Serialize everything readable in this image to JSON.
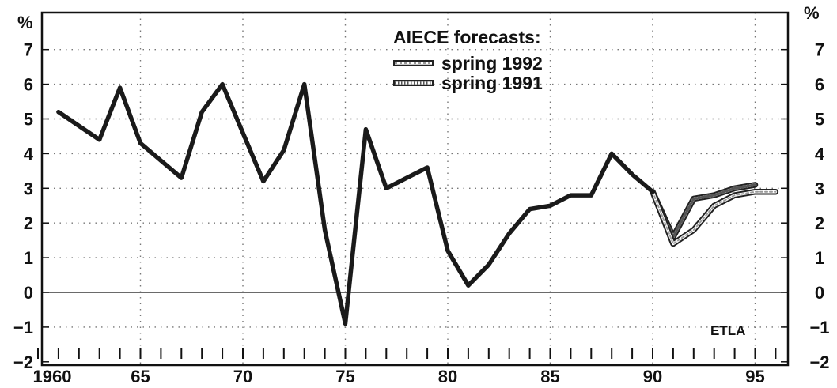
{
  "chart_data": {
    "type": "line",
    "title": "",
    "xlabel": "",
    "ylabel": "%",
    "ylabel_right": "%",
    "xlim": [
      1960,
      1997
    ],
    "ylim": [
      -2,
      8
    ],
    "grid": true,
    "x_ticks": [
      {
        "value": 1960,
        "label": "1960"
      },
      {
        "value": 1965,
        "label": "65"
      },
      {
        "value": 1970,
        "label": "70"
      },
      {
        "value": 1975,
        "label": "75"
      },
      {
        "value": 1980,
        "label": "80"
      },
      {
        "value": 1985,
        "label": "85"
      },
      {
        "value": 1990,
        "label": "90"
      },
      {
        "value": 1995,
        "label": "95"
      }
    ],
    "y_ticks": [
      {
        "value": -2,
        "label": "−2"
      },
      {
        "value": -1,
        "label": "−1"
      },
      {
        "value": 0,
        "label": "0"
      },
      {
        "value": 1,
        "label": "1"
      },
      {
        "value": 2,
        "label": "2"
      },
      {
        "value": 3,
        "label": "3"
      },
      {
        "value": 4,
        "label": "4"
      },
      {
        "value": 5,
        "label": "5"
      },
      {
        "value": 6,
        "label": "6"
      },
      {
        "value": 7,
        "label": "7"
      }
    ],
    "legend": {
      "title": "AIECE forecasts:",
      "position": "top-center"
    },
    "series": [
      {
        "kind": "actual",
        "color": "#222222",
        "x": [
          1961,
          1962,
          1963,
          1964,
          1965,
          1966,
          1967,
          1968,
          1969,
          1970,
          1971,
          1972,
          1973,
          1974,
          1975,
          1976,
          1977,
          1978,
          1979,
          1980,
          1981,
          1982,
          1983,
          1984,
          1985,
          1986,
          1987,
          1988,
          1989,
          1990
        ],
        "y": [
          5.2,
          4.8,
          4.4,
          5.9,
          4.3,
          3.8,
          3.3,
          5.2,
          6.0,
          4.6,
          3.2,
          4.1,
          6.0,
          1.8,
          -0.9,
          4.7,
          3.0,
          3.3,
          3.6,
          1.2,
          0.2,
          0.8,
          1.7,
          2.4,
          2.5,
          2.8,
          2.8,
          4.0,
          3.4,
          2.9
        ]
      },
      {
        "name": "spring 1992",
        "kind": "forecast",
        "color": "#333333",
        "x": [
          1990,
          1991,
          1992,
          1993,
          1994,
          1995,
          1996
        ],
        "y": [
          2.9,
          1.4,
          1.8,
          2.5,
          2.8,
          2.9,
          2.9
        ]
      },
      {
        "name": "spring 1991",
        "kind": "forecast",
        "color": "#333333",
        "x": [
          1990,
          1991,
          1992,
          1993,
          1994,
          1995
        ],
        "y": [
          2.9,
          1.6,
          2.7,
          2.8,
          3.0,
          3.1
        ]
      }
    ],
    "annotations": [
      {
        "text": "ETLA",
        "position": "bottom-right"
      }
    ]
  }
}
